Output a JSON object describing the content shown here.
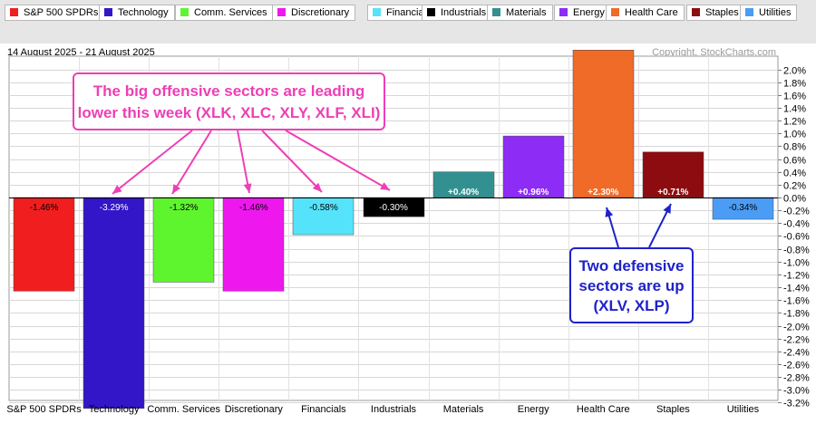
{
  "legend": {
    "items": [
      {
        "label": "S&P 500 SPDRs",
        "color": "#f01e1e"
      },
      {
        "label": "Technology",
        "color": "#3216c8"
      },
      {
        "label": "Comm. Services",
        "color": "#5ef52e"
      },
      {
        "label": "Discretionary",
        "color": "#ee18ee"
      },
      {
        "label": "Financials",
        "color": "#55e3fb"
      },
      {
        "label": "Industrials",
        "color": "#000000"
      },
      {
        "label": "Materials",
        "color": "#339090"
      },
      {
        "label": "Energy",
        "color": "#8c2cf5"
      },
      {
        "label": "Health Care",
        "color": "#f06a28"
      },
      {
        "label": "Staples",
        "color": "#8c0c10"
      },
      {
        "label": "Utilities",
        "color": "#4a9cf5"
      }
    ]
  },
  "header": {
    "date_range": "14 August 2025 - 21 August 2025",
    "copyright": "Copyright, StockCharts.com"
  },
  "chart_data": {
    "type": "bar",
    "categories": [
      "S&P 500 SPDRs",
      "Technology",
      "Comm. Services",
      "Discretionary",
      "Financials",
      "Industrials",
      "Materials",
      "Energy",
      "Health Care",
      "Staples",
      "Utilities"
    ],
    "values": [
      -1.46,
      -3.29,
      -1.32,
      -1.46,
      -0.58,
      -0.3,
      0.4,
      0.96,
      2.3,
      0.71,
      -0.34
    ],
    "data_labels": [
      "-1.46%",
      "-3.29%",
      "-1.32%",
      "-1.46%",
      "-0.58%",
      "-0.30%",
      "+0.40%",
      "+0.96%",
      "+2.30%",
      "+0.71%",
      "-0.34%"
    ],
    "colors": [
      "#f01e1e",
      "#3216c8",
      "#5ef52e",
      "#ee18ee",
      "#55e3fb",
      "#000000",
      "#339090",
      "#8c2cf5",
      "#f06a28",
      "#8c0c10",
      "#4a9cf5"
    ],
    "ylim": [
      -3.32,
      2.24
    ],
    "y_ticks": [
      2.0,
      1.8,
      1.6,
      1.4,
      1.2,
      1.0,
      0.8,
      0.6,
      0.4,
      0.2,
      0.0,
      -0.2,
      -0.4,
      -0.6,
      -0.8,
      -1.0,
      -1.2,
      -1.4,
      -1.6,
      -1.8,
      -2.0,
      -2.2,
      -2.4,
      -2.6,
      -2.8,
      -3.0,
      -3.2
    ],
    "y_tick_labels": [
      "2.0%",
      "1.8%",
      "1.6%",
      "1.4%",
      "1.2%",
      "1.0%",
      "0.8%",
      "0.6%",
      "0.4%",
      "0.2%",
      "0.0%",
      "-0.2%",
      "-0.4%",
      "-0.6%",
      "-0.8%",
      "-1.0%",
      "-1.2%",
      "-1.4%",
      "-1.6%",
      "-1.8%",
      "-2.0%",
      "-2.2%",
      "-2.4%",
      "-2.6%",
      "-2.8%",
      "-3.0%",
      "-3.2%"
    ],
    "grid": true,
    "y_axis_side": "right"
  },
  "annotations": {
    "offensive": {
      "lines": [
        "The big offensive sectors are leading",
        "lower this week (XLK, XLC, XLY, XLF, XLI)"
      ],
      "color": "#ee3fb5"
    },
    "defensive": {
      "lines": [
        "Two defensive",
        "sectors are up",
        "(XLV, XLP)"
      ],
      "color": "#1f22c9"
    }
  }
}
